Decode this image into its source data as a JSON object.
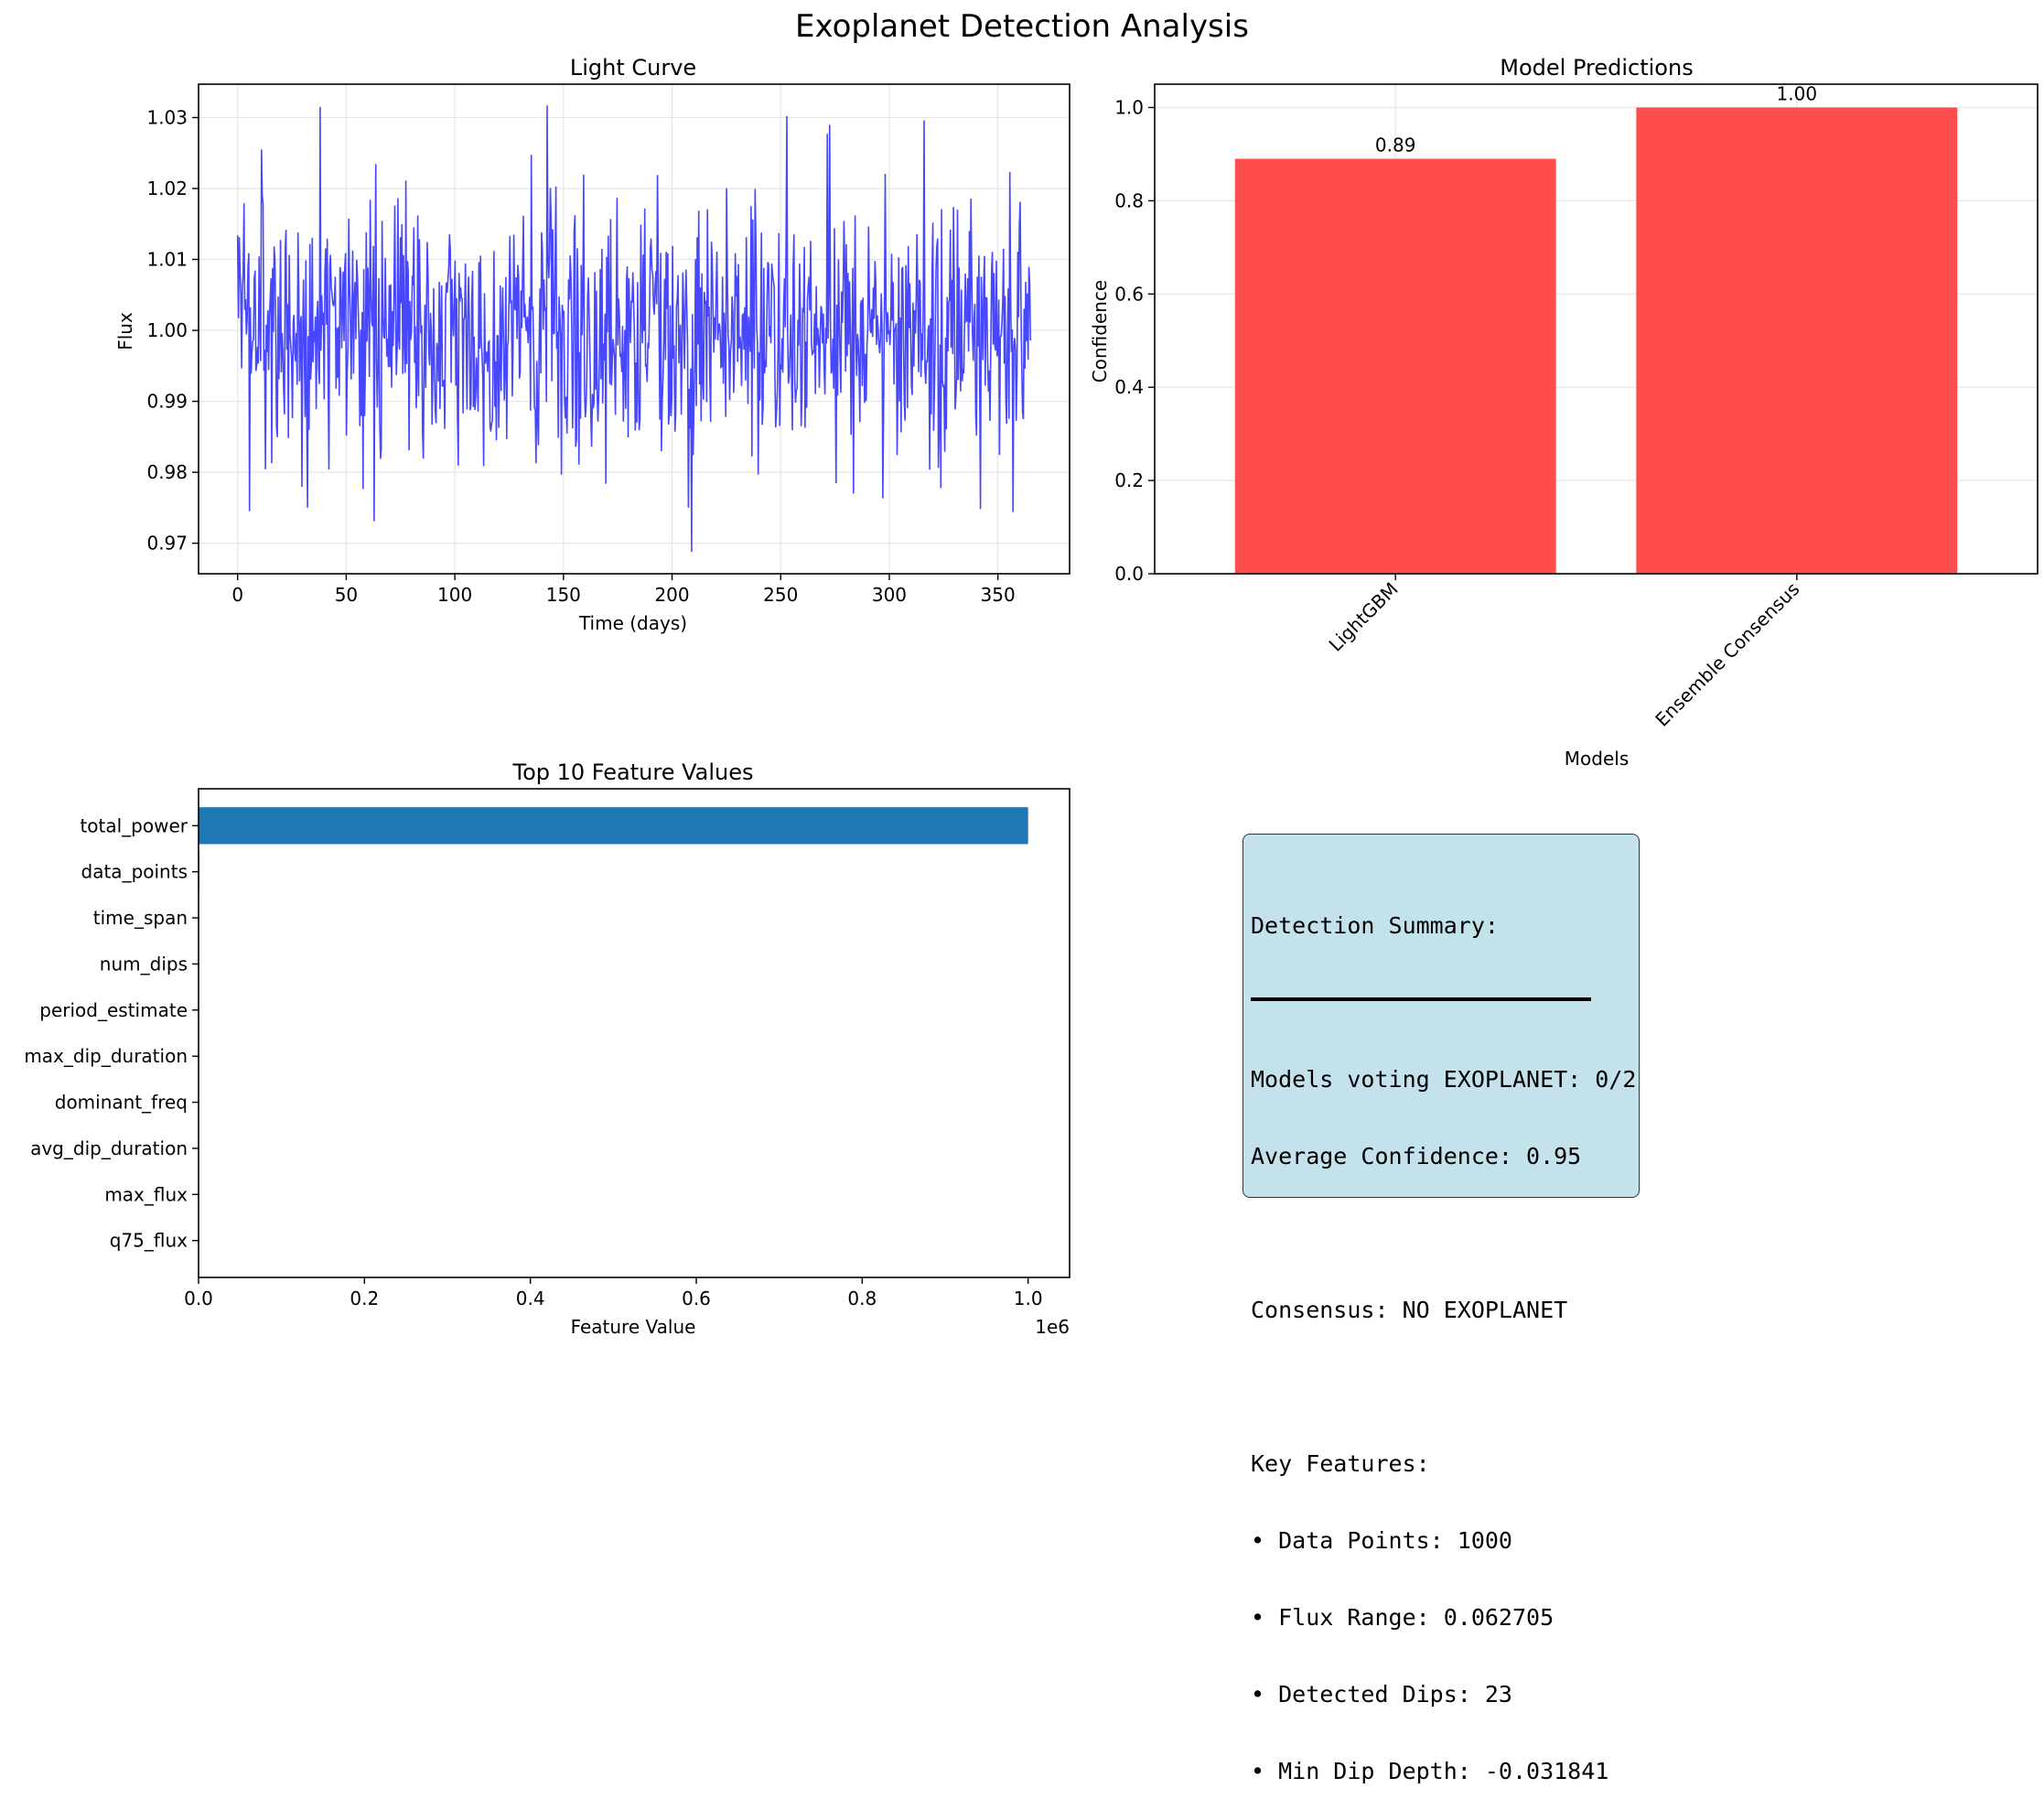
{
  "figure": {
    "suptitle": "Exoplanet Detection Analysis"
  },
  "chart_data": [
    {
      "type": "line",
      "title": "Light Curve",
      "xlabel": "Time (days)",
      "ylabel": "Flux",
      "xlim": [
        -18,
        383
      ],
      "ylim": [
        0.9657,
        1.0347
      ],
      "xticks": [
        0,
        50,
        100,
        150,
        200,
        250,
        300,
        350
      ],
      "yticks": [
        0.97,
        0.98,
        0.99,
        1.0,
        1.01,
        1.02,
        1.03
      ],
      "ytick_labels": [
        "0.97",
        "0.98",
        "0.99",
        "1.00",
        "1.01",
        "1.02",
        "1.03"
      ],
      "color": "#3333ff",
      "grid": true,
      "series": [
        {
          "name": "flux",
          "n_points": 1000,
          "x_range": [
            0,
            365
          ],
          "mean": 1.0,
          "std": 0.0095,
          "notable_points": [
            {
              "x": 38,
              "y": 1.0315
            },
            {
              "x": 253,
              "y": 1.0302
            },
            {
              "x": 316,
              "y": 1.0296
            },
            {
              "x": 11,
              "y": 1.0255
            },
            {
              "x": 209,
              "y": 0.9688
            },
            {
              "x": 63,
              "y": 0.9731
            },
            {
              "x": 32,
              "y": 0.975
            },
            {
              "x": 342,
              "y": 0.9748
            },
            {
              "x": 357,
              "y": 0.9744
            }
          ]
        }
      ]
    },
    {
      "type": "bar",
      "title": "Model Predictions",
      "xlabel": "Models",
      "ylabel": "Confidence",
      "categories": [
        "LightGBM",
        "Ensemble Consensus"
      ],
      "values": [
        0.89,
        1.0
      ],
      "value_labels": [
        "0.89",
        "1.00"
      ],
      "ylim": [
        0,
        1.05
      ],
      "yticks": [
        0.0,
        0.2,
        0.4,
        0.6,
        0.8,
        1.0
      ],
      "ytick_labels": [
        "0.0",
        "0.2",
        "0.4",
        "0.6",
        "0.8",
        "1.0"
      ],
      "color": "#ff4d4d",
      "grid": true
    },
    {
      "type": "bar",
      "orientation": "horizontal",
      "title": "Top 10 Feature Values",
      "xlabel": "Feature Value",
      "categories": [
        "total_power",
        "data_points",
        "time_span",
        "num_dips",
        "period_estimate",
        "max_dip_duration",
        "dominant_freq",
        "avg_dip_duration",
        "max_flux",
        "q75_flux"
      ],
      "values": [
        1000000,
        1000,
        365,
        23,
        15.8,
        9,
        0.05,
        4.2,
        1.0315,
        1.0064
      ],
      "xlim": [
        0,
        1050000
      ],
      "xticks": [
        0,
        200000,
        400000,
        600000,
        800000,
        1000000
      ],
      "xtick_labels": [
        "0.0",
        "0.2",
        "0.4",
        "0.6",
        "0.8",
        "1.0"
      ],
      "offset_text": "1e6",
      "color": "#1f77b4"
    }
  ],
  "summary": {
    "heading": "Detection Summary:",
    "votes": "Models voting EXOPLANET: 0/2",
    "avg_conf": "Average Confidence: 0.95",
    "consensus": "Consensus: NO EXOPLANET",
    "key_features_label": "Key Features:",
    "features": [
      "• Data Points: 1000",
      "• Flux Range: 0.062705",
      "• Detected Dips: 23",
      "• Min Dip Depth: -0.031841"
    ]
  }
}
